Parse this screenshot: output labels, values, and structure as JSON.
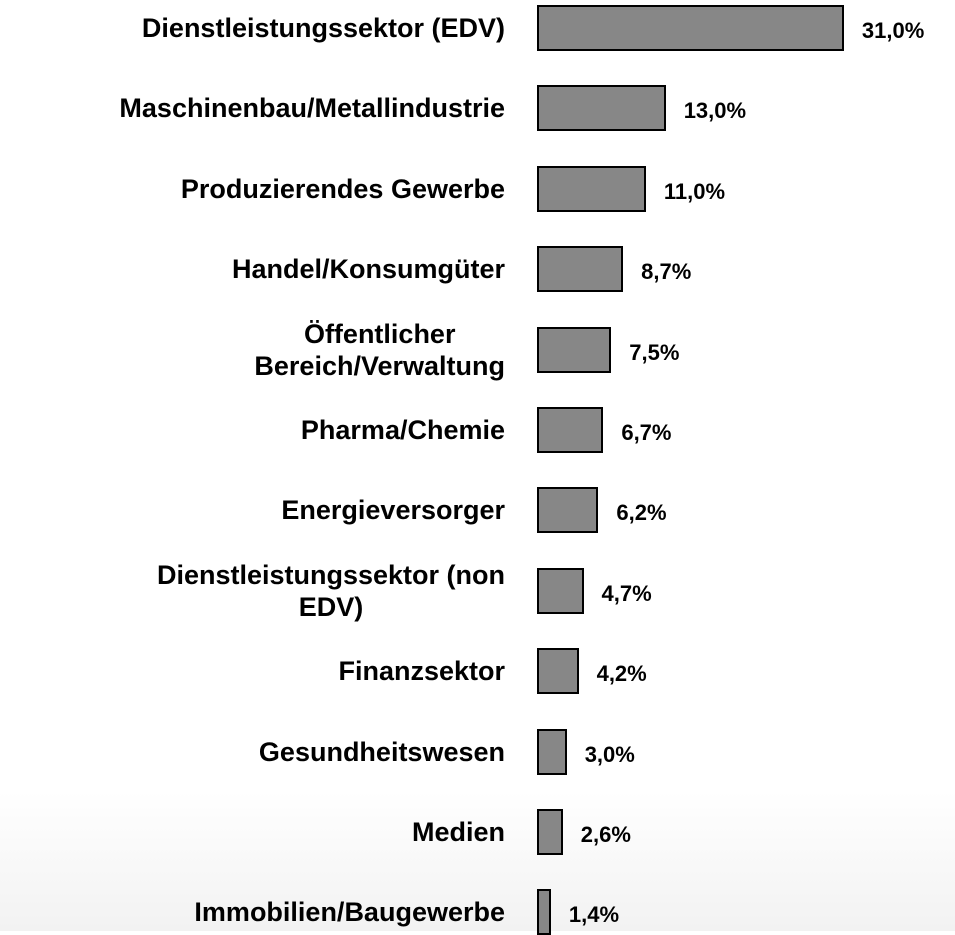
{
  "chart_data": {
    "type": "barh",
    "categories": [
      "Dienstleistungssektor (EDV)",
      "Maschinenbau/Metallindustrie",
      "Produzierendes Gewerbe",
      "Handel/Konsumgüter",
      "Öffentlicher\nBereich/Verwaltung",
      "Pharma/Chemie",
      "Energieversorger",
      "Dienstleistungssektor (non\nEDV)",
      "Finanzsektor",
      "Gesundheitswesen",
      "Medien",
      "Immobilien/Baugewerbe"
    ],
    "values": [
      31.0,
      13.0,
      11.0,
      8.7,
      7.5,
      6.7,
      6.2,
      4.7,
      4.2,
      3.0,
      2.6,
      1.4
    ],
    "value_labels": [
      "31,0%",
      "13,0%",
      "11,0%",
      "8,7%",
      "7,5%",
      "6,7%",
      "6,2%",
      "4,7%",
      "4,2%",
      "3,0%",
      "2,6%",
      "1,4%"
    ],
    "color": "#878787"
  }
}
